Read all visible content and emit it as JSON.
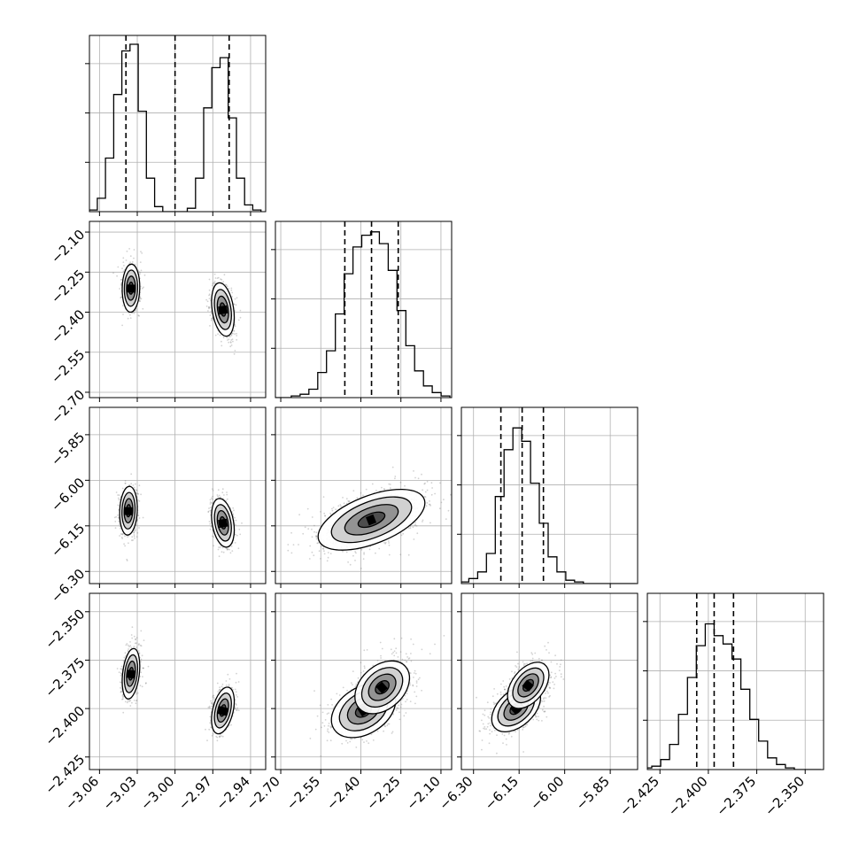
{
  "chart_data": {
    "type": "corner",
    "parameters": [
      {
        "range": [
          -3.068,
          -2.928
        ],
        "ticks": [
          -3.06,
          -3.03,
          -3.0,
          -2.97,
          -2.94
        ],
        "tick_labels": [
          "−3.06",
          "−3.03",
          "−3.00",
          "−2.97",
          "−2.94"
        ],
        "quantiles": [
          -3.039,
          -3.0,
          -2.957
        ],
        "histogram_bin_width": 0.0065,
        "histogram_bins": [
          [
            -3.065,
            0.01
          ],
          [
            -3.0585,
            0.08
          ],
          [
            -3.052,
            0.32
          ],
          [
            -3.0455,
            0.7
          ],
          [
            -3.039,
            0.96
          ],
          [
            -3.0325,
            1.0
          ],
          [
            -3.026,
            0.6
          ],
          [
            -3.0195,
            0.2
          ],
          [
            -3.013,
            0.03
          ],
          [
            -3.0065,
            0.0
          ],
          [
            -3.0,
            0.0
          ],
          [
            -2.9935,
            0.0
          ],
          [
            -2.987,
            0.02
          ],
          [
            -2.9805,
            0.2
          ],
          [
            -2.974,
            0.62
          ],
          [
            -2.9675,
            0.86
          ],
          [
            -2.961,
            0.92
          ],
          [
            -2.9545,
            0.56
          ],
          [
            -2.948,
            0.2
          ],
          [
            -2.9415,
            0.04
          ],
          [
            -2.935,
            0.01
          ]
        ]
      },
      {
        "range": [
          -2.72,
          -2.06
        ],
        "ticks": [
          -2.7,
          -2.55,
          -2.4,
          -2.25,
          -2.1
        ],
        "tick_labels": [
          "−2.70",
          "−2.55",
          "−2.40",
          "−2.25",
          "−2.10"
        ],
        "quantiles": [
          -2.46,
          -2.36,
          -2.26
        ],
        "histogram_bin_width": 0.033,
        "histogram_bins": [
          [
            -2.71,
            0.0
          ],
          [
            -2.677,
            0.0
          ],
          [
            -2.644,
            0.01
          ],
          [
            -2.611,
            0.02
          ],
          [
            -2.578,
            0.05
          ],
          [
            -2.545,
            0.15
          ],
          [
            -2.512,
            0.28
          ],
          [
            -2.479,
            0.5
          ],
          [
            -2.446,
            0.74
          ],
          [
            -2.413,
            0.9
          ],
          [
            -2.38,
            0.97
          ],
          [
            -2.347,
            0.99
          ],
          [
            -2.314,
            0.92
          ],
          [
            -2.281,
            0.76
          ],
          [
            -2.248,
            0.52
          ],
          [
            -2.215,
            0.31
          ],
          [
            -2.182,
            0.16
          ],
          [
            -2.149,
            0.07
          ],
          [
            -2.116,
            0.03
          ],
          [
            -2.083,
            0.01
          ]
        ]
      },
      {
        "range": [
          -6.34,
          -5.76
        ],
        "ticks": [
          -6.3,
          -6.15,
          -6.0,
          -5.85
        ],
        "tick_labels": [
          "−6.30",
          "−6.15",
          "−6.00",
          "−5.85"
        ],
        "quantiles": [
          -6.21,
          -6.14,
          -6.07
        ],
        "histogram_bin_width": 0.029,
        "histogram_bins": [
          [
            -6.33,
            0.01
          ],
          [
            -6.301,
            0.03
          ],
          [
            -6.272,
            0.07
          ],
          [
            -6.243,
            0.18
          ],
          [
            -6.214,
            0.52
          ],
          [
            -6.185,
            0.8
          ],
          [
            -6.156,
            0.93
          ],
          [
            -6.127,
            0.85
          ],
          [
            -6.098,
            0.6
          ],
          [
            -6.069,
            0.36
          ],
          [
            -6.04,
            0.16
          ],
          [
            -6.011,
            0.07
          ],
          [
            -5.982,
            0.02
          ],
          [
            -5.953,
            0.01
          ],
          [
            -5.924,
            0.0
          ],
          [
            -5.895,
            0.0
          ],
          [
            -5.866,
            0.0
          ],
          [
            -5.837,
            0.0
          ],
          [
            -5.808,
            0.0
          ],
          [
            -5.779,
            0.0
          ]
        ]
      },
      {
        "range": [
          -2.4315,
          -2.3405
        ],
        "ticks": [
          -2.425,
          -2.4,
          -2.375,
          -2.35
        ],
        "tick_labels": [
          "−2.425",
          "−2.400",
          "−2.375",
          "−2.350"
        ],
        "quantiles": [
          -2.406,
          -2.397,
          -2.387
        ],
        "histogram_bin_width": 0.0046,
        "histogram_bins": [
          [
            -2.4315,
            0.01
          ],
          [
            -2.4269,
            0.02
          ],
          [
            -2.4223,
            0.06
          ],
          [
            -2.4177,
            0.15
          ],
          [
            -2.4131,
            0.33
          ],
          [
            -2.4085,
            0.55
          ],
          [
            -2.4039,
            0.74
          ],
          [
            -2.3993,
            0.87
          ],
          [
            -2.3947,
            0.8
          ],
          [
            -2.3901,
            0.75
          ],
          [
            -2.3855,
            0.66
          ],
          [
            -2.3809,
            0.48
          ],
          [
            -2.3763,
            0.3
          ],
          [
            -2.3717,
            0.17
          ],
          [
            -2.3671,
            0.07
          ],
          [
            -2.3625,
            0.03
          ],
          [
            -2.3579,
            0.01
          ],
          [
            -2.3533,
            0.0
          ],
          [
            -2.3487,
            0.0
          ],
          [
            -2.3441,
            0.0
          ]
        ]
      }
    ],
    "pairs": [
      {
        "x_param": 0,
        "y_param": 1,
        "modes": [
          {
            "x": -3.035,
            "y": -2.31,
            "sx": 0.0035,
            "sy": 0.045,
            "rho": 0.05,
            "weight": 0.5
          },
          {
            "x": -2.962,
            "y": -2.39,
            "sx": 0.0045,
            "sy": 0.05,
            "rho": -0.3,
            "weight": 0.5
          }
        ]
      },
      {
        "x_param": 0,
        "y_param": 2,
        "modes": [
          {
            "x": -3.037,
            "y": -6.1,
            "sx": 0.0035,
            "sy": 0.04,
            "rho": 0.1,
            "weight": 0.5
          },
          {
            "x": -2.962,
            "y": -6.14,
            "sx": 0.0045,
            "sy": 0.04,
            "rho": -0.3,
            "weight": 0.5
          }
        ]
      },
      {
        "x_param": 0,
        "y_param": 3,
        "modes": [
          {
            "x": -3.035,
            "y": -2.382,
            "sx": 0.0035,
            "sy": 0.0065,
            "rho": 0.3,
            "weight": 0.5
          },
          {
            "x": -2.962,
            "y": -2.401,
            "sx": 0.0045,
            "sy": 0.006,
            "rho": 0.4,
            "weight": 0.5
          }
        ]
      },
      {
        "x_param": 1,
        "y_param": 2,
        "modes": [
          {
            "x": -2.36,
            "y": -6.13,
            "sx": 0.1,
            "sy": 0.05,
            "rho": 0.55,
            "weight": 1.0
          }
        ]
      },
      {
        "x_param": 1,
        "y_param": 3,
        "modes": [
          {
            "x": -2.39,
            "y": -2.401,
            "sx": 0.06,
            "sy": 0.007,
            "rho": 0.35,
            "weight": 0.6
          },
          {
            "x": -2.32,
            "y": -2.389,
            "sx": 0.06,
            "sy": 0.008,
            "rho": 0.35,
            "weight": 0.4
          }
        ]
      },
      {
        "x_param": 2,
        "y_param": 3,
        "modes": [
          {
            "x": -6.16,
            "y": -2.4,
            "sx": 0.04,
            "sy": 0.006,
            "rho": 0.45,
            "weight": 0.6
          },
          {
            "x": -6.12,
            "y": -2.388,
            "sx": 0.04,
            "sy": 0.007,
            "rho": 0.45,
            "weight": 0.4
          }
        ]
      }
    ],
    "grid": true,
    "style": {
      "hist_color": "#000000",
      "point_color": "#7f7f7f",
      "grid_color": "#b0b0b0",
      "contour_color": "#000000"
    }
  }
}
